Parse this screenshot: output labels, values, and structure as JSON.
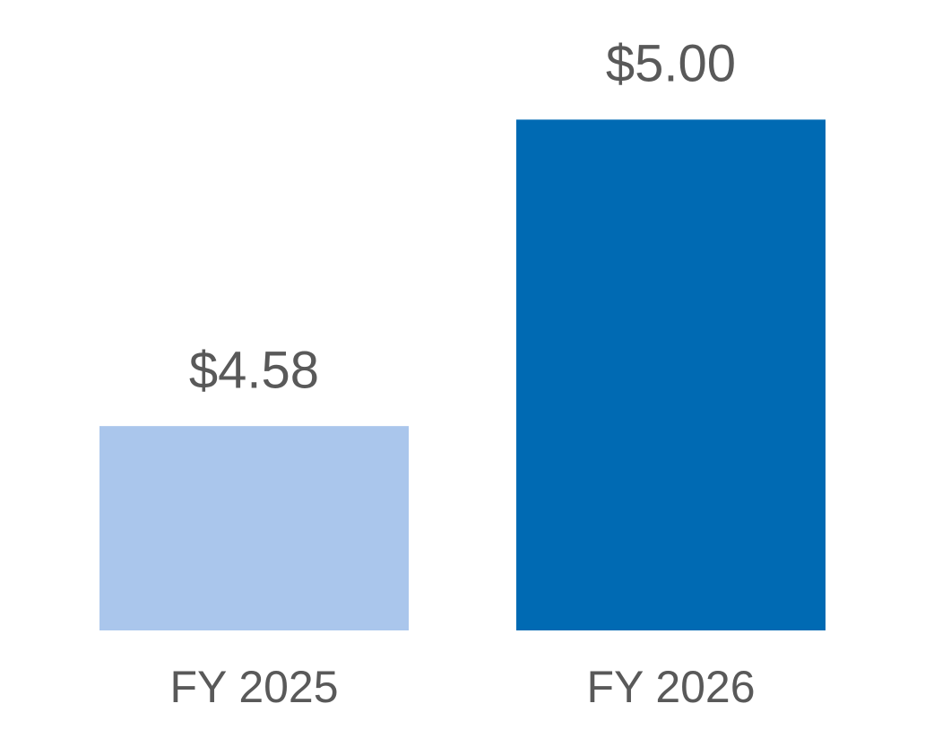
{
  "chart_data": {
    "type": "bar",
    "categories": [
      "FY 2025",
      "FY 2026"
    ],
    "values": [
      4.58,
      5.0
    ],
    "value_labels": [
      "$4.58",
      "$5.00"
    ],
    "colors": [
      "#aac6ec",
      "#006ab3"
    ],
    "ylim": [
      4.3,
      5.1
    ]
  }
}
